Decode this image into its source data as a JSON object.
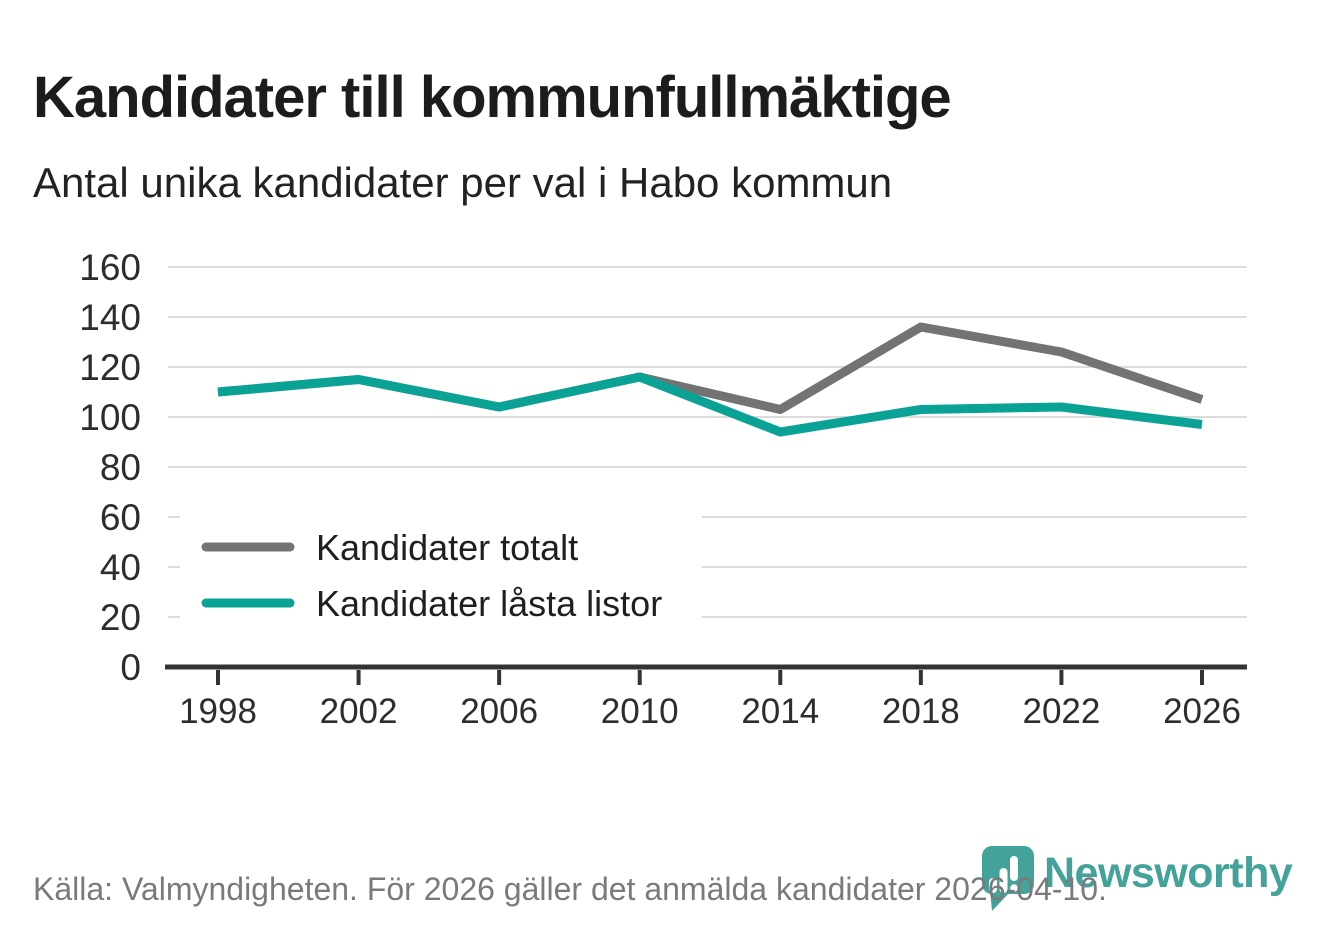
{
  "title": "Kandidater till kommunfullmäktige",
  "subtitle": "Antal unika kandidater per val i Habo kommun",
  "footer": {
    "source": "Källa: Valmyndigheten. För 2026 gäller det anmälda kandidater 2026-04-10."
  },
  "logo": {
    "wordmark": "Newsworthy",
    "icon": "newsworthy-speech-bubble-bar-chart-icon"
  },
  "colors": {
    "text_dark": "#1c1c1c",
    "text_body": "#222222",
    "tick_label": "#2d2d2d",
    "grid": "#dcdcdc",
    "axis": "#333333",
    "line_total_gray": "#737373",
    "line_locked_teal": "#0ba296",
    "legend_text": "#1f1f1f",
    "source_gray": "#7a7a7a",
    "logo_teal": "#43a29a"
  },
  "chart_data": {
    "type": "line",
    "title": "Kandidater till kommunfullmäktige",
    "subtitle": "Antal unika kandidater per val i Habo kommun",
    "x": [
      1998,
      2002,
      2006,
      2010,
      2014,
      2018,
      2022,
      2026
    ],
    "series": [
      {
        "name": "Kandidater totalt",
        "color": "#737373",
        "values": [
          110,
          115,
          104,
          116,
          103,
          136,
          126,
          107
        ]
      },
      {
        "name": "Kandidater låsta listor",
        "color": "#0ba296",
        "values": [
          110,
          115,
          104,
          116,
          94,
          103,
          104,
          97
        ]
      }
    ],
    "xlabel": "",
    "ylabel": "",
    "ylim": [
      0,
      160
    ],
    "y_ticks": [
      0,
      20,
      40,
      60,
      80,
      100,
      120,
      140,
      160
    ],
    "grid": true,
    "legend_position": "inside-bottom-left"
  }
}
